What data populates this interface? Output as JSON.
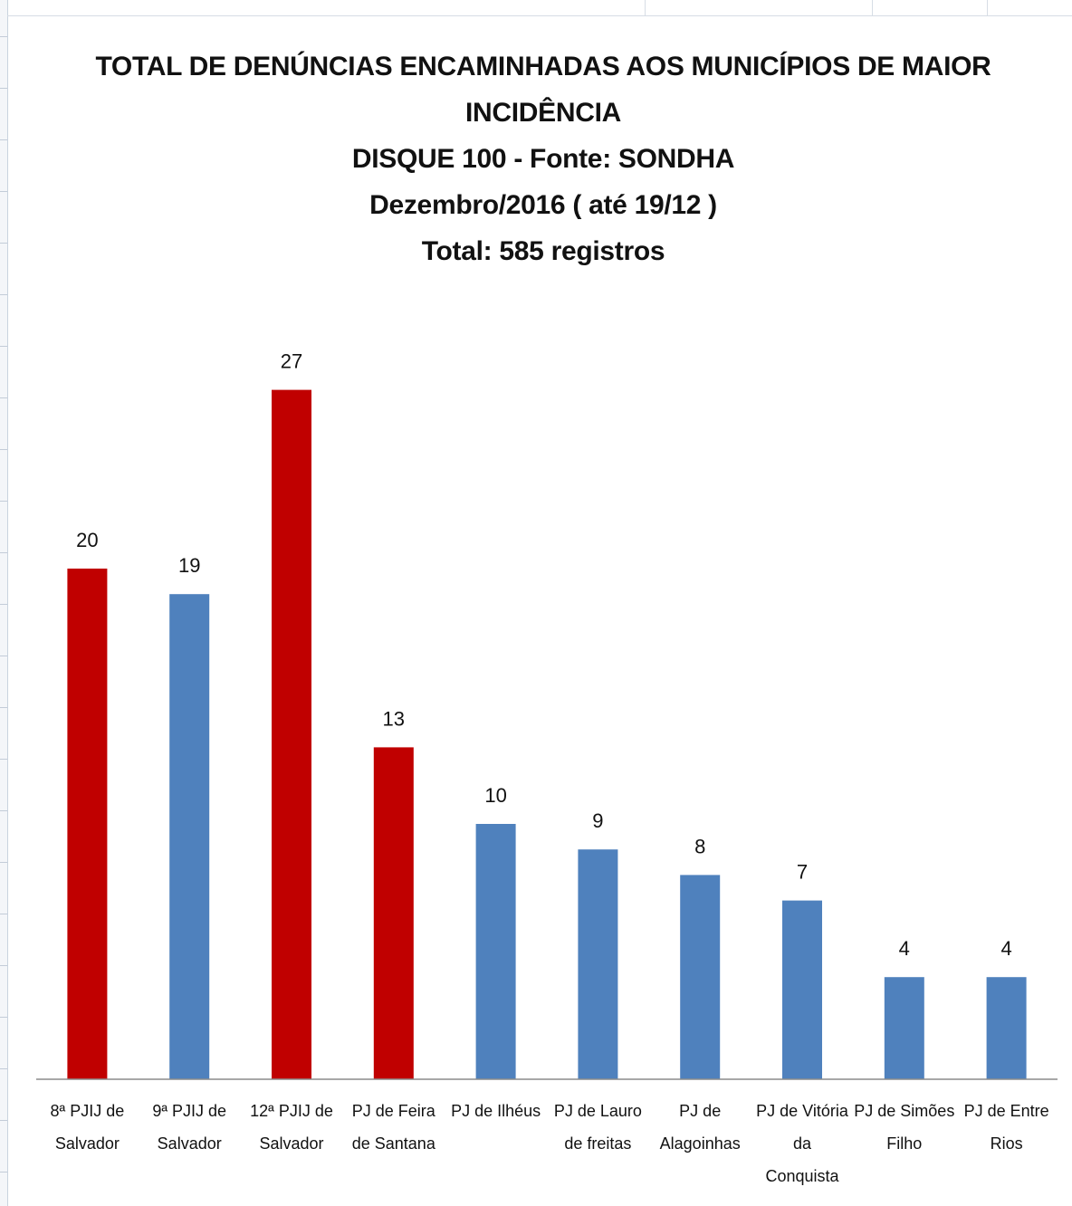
{
  "chart_data": {
    "type": "bar",
    "title_lines": [
      "TOTAL DE DENÚNCIAS ENCAMINHADAS AOS MUNICÍPIOS DE MAIOR",
      "INCIDÊNCIA",
      "DISQUE 100 - Fonte: SONDHA",
      "Dezembro/2016 ( até 19/12 )",
      "Total: 585 registros"
    ],
    "categories": [
      [
        "8ª PJIJ de",
        "Salvador"
      ],
      [
        "9ª PJIJ de",
        "Salvador"
      ],
      [
        "12ª PJIJ de",
        "Salvador"
      ],
      [
        "PJ de Feira",
        "de Santana"
      ],
      [
        "PJ de Ilhéus"
      ],
      [
        "PJ de Lauro",
        "de freitas"
      ],
      [
        "PJ de",
        "Alagoinhas"
      ],
      [
        "PJ de Vitória",
        "da",
        "Conquista"
      ],
      [
        "PJ de Simões",
        "Filho"
      ],
      [
        "PJ de Entre",
        "Rios"
      ]
    ],
    "values": [
      20,
      19,
      27,
      13,
      10,
      9,
      8,
      7,
      4,
      4
    ],
    "highlighted": [
      true,
      false,
      true,
      true,
      false,
      false,
      false,
      false,
      false,
      false
    ],
    "colors": {
      "highlight": "#C00000",
      "default": "#4F81BD"
    },
    "ylim": [
      0,
      30
    ],
    "grid": false,
    "legend": "none",
    "xlabel": "",
    "ylabel": ""
  }
}
